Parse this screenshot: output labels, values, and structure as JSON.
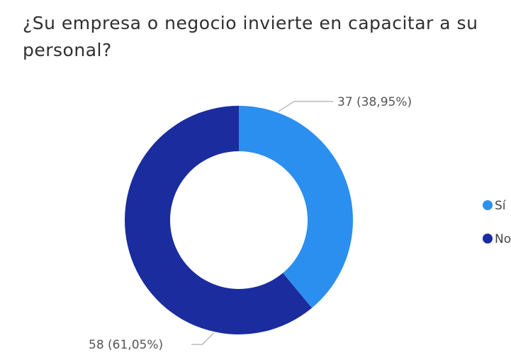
{
  "chart_data": {
    "type": "pie",
    "donut": true,
    "title": "¿Su empresa o negocio invierte en capacitar a su personal?",
    "categories": [
      "Sí",
      "No"
    ],
    "values": [
      37,
      58
    ],
    "data_labels": [
      "37 (38,95%)",
      "58 (61,05%)"
    ],
    "colors": [
      "#2b8ff0",
      "#1a2c9e"
    ],
    "legend": {
      "placement": "right",
      "entries": [
        "Sí",
        "No"
      ]
    }
  }
}
